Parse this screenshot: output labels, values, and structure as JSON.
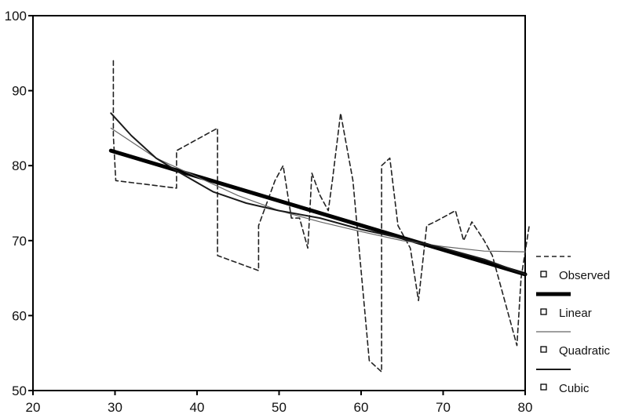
{
  "chart_data": {
    "type": "line",
    "title": "",
    "xlabel": "",
    "ylabel": "",
    "xlim": [
      20,
      80
    ],
    "ylim": [
      50,
      100
    ],
    "x_ticks": [
      "20",
      "30",
      "40",
      "50",
      "60",
      "70",
      "80"
    ],
    "y_ticks": [
      "50",
      "60",
      "70",
      "80",
      "90",
      "100"
    ],
    "grid": false,
    "legend_position": "right, outside plot",
    "series": [
      {
        "name": "Observed",
        "style": "dashed",
        "color": "#222222",
        "points": [
          [
            29.8,
            94
          ],
          [
            29.8,
            84
          ],
          [
            30.1,
            78
          ],
          [
            37.5,
            77
          ],
          [
            37.5,
            82
          ],
          [
            42.5,
            85
          ],
          [
            42.5,
            68
          ],
          [
            47.5,
            66
          ],
          [
            47.5,
            72
          ],
          [
            49.5,
            78
          ],
          [
            50.5,
            80
          ],
          [
            51.5,
            73
          ],
          [
            52.5,
            73
          ],
          [
            53.5,
            69
          ],
          [
            54,
            79
          ],
          [
            55,
            76
          ],
          [
            56,
            74
          ],
          [
            56.5,
            78
          ],
          [
            57.5,
            87
          ],
          [
            59,
            78
          ],
          [
            61,
            54
          ],
          [
            62.5,
            52.5
          ],
          [
            62.5,
            80
          ],
          [
            63.5,
            81
          ],
          [
            64.5,
            72
          ],
          [
            66,
            69
          ],
          [
            67,
            62
          ],
          [
            68,
            72
          ],
          [
            69,
            72.5
          ],
          [
            71.5,
            74
          ],
          [
            72.5,
            70
          ],
          [
            73.5,
            72.5
          ],
          [
            75,
            70
          ],
          [
            76,
            68
          ],
          [
            78,
            60
          ],
          [
            79,
            56
          ],
          [
            79.5,
            65
          ],
          [
            80.5,
            72
          ]
        ]
      },
      {
        "name": "Linear",
        "style": "solid-thick",
        "color": "#000000",
        "points": [
          [
            29.5,
            82
          ],
          [
            80,
            65.5
          ]
        ]
      },
      {
        "name": "Quadratic",
        "style": "solid-thin",
        "color": "#666666",
        "points": [
          [
            29.5,
            85
          ],
          [
            35,
            81
          ],
          [
            40,
            78.5
          ],
          [
            45,
            76
          ],
          [
            50,
            74
          ],
          [
            55,
            72.5
          ],
          [
            60,
            71.2
          ],
          [
            65,
            70
          ],
          [
            70,
            69.2
          ],
          [
            75,
            68.6
          ],
          [
            80,
            68.5
          ]
        ]
      },
      {
        "name": "Cubic",
        "style": "solid",
        "color": "#1a1a1a",
        "points": [
          [
            29.5,
            87
          ],
          [
            32,
            84
          ],
          [
            35,
            81
          ],
          [
            38,
            79
          ],
          [
            42,
            76.5
          ],
          [
            46,
            75
          ],
          [
            50,
            74
          ],
          [
            55,
            73
          ],
          [
            60,
            71.5
          ],
          [
            65,
            70.3
          ],
          [
            70,
            69
          ],
          [
            75,
            67.5
          ],
          [
            80,
            65.5
          ]
        ]
      }
    ]
  }
}
